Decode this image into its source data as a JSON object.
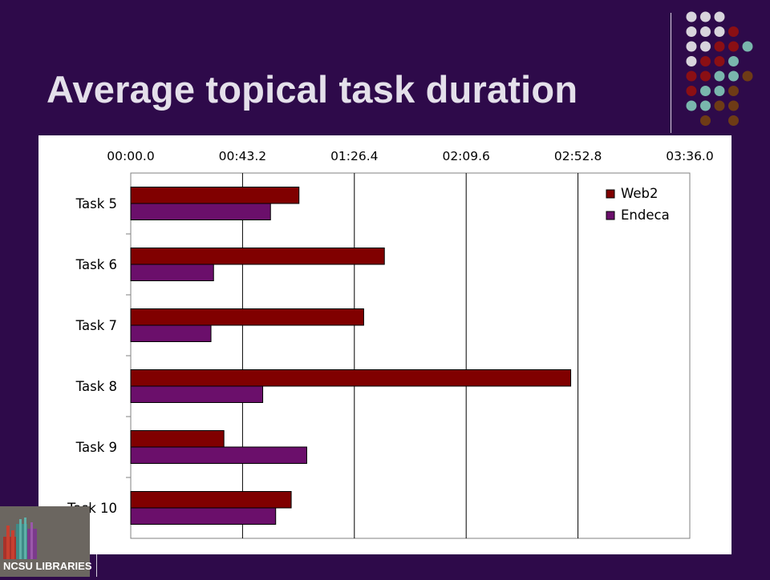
{
  "slide": {
    "title": "Average topical task duration"
  },
  "logo": {
    "text": "NCSU LIBRARIES"
  },
  "colors": {
    "background": "#2e0a4a",
    "web2": "#800000",
    "endeca": "#6b0f6b",
    "dot_light": "#d8d4dc",
    "dot_red": "#8b0f14",
    "dot_teal": "#79b6ad",
    "dot_brown": "#6e3b16"
  },
  "chart_data": {
    "type": "bar",
    "orientation": "horizontal",
    "categories": [
      "Task 5",
      "Task 6",
      "Task 7",
      "Task 8",
      "Task 9",
      "Task 10"
    ],
    "series": [
      {
        "name": "Web2",
        "values": [
          65,
          98,
          90,
          170,
          36,
          62
        ]
      },
      {
        "name": "Endeca",
        "values": [
          54,
          32,
          31,
          51,
          68,
          56
        ]
      }
    ],
    "value_unit": "seconds",
    "xlim": [
      0,
      216
    ],
    "x_ticks": [
      0,
      43.2,
      86.4,
      129.6,
      172.8,
      216
    ],
    "x_tick_labels": [
      "00:00.0",
      "00:43.2",
      "01:26.4",
      "02:09.6",
      "02:52.8",
      "03:36.0"
    ],
    "x_axis_position": "top",
    "grid": true,
    "legend_position": "top-right"
  }
}
